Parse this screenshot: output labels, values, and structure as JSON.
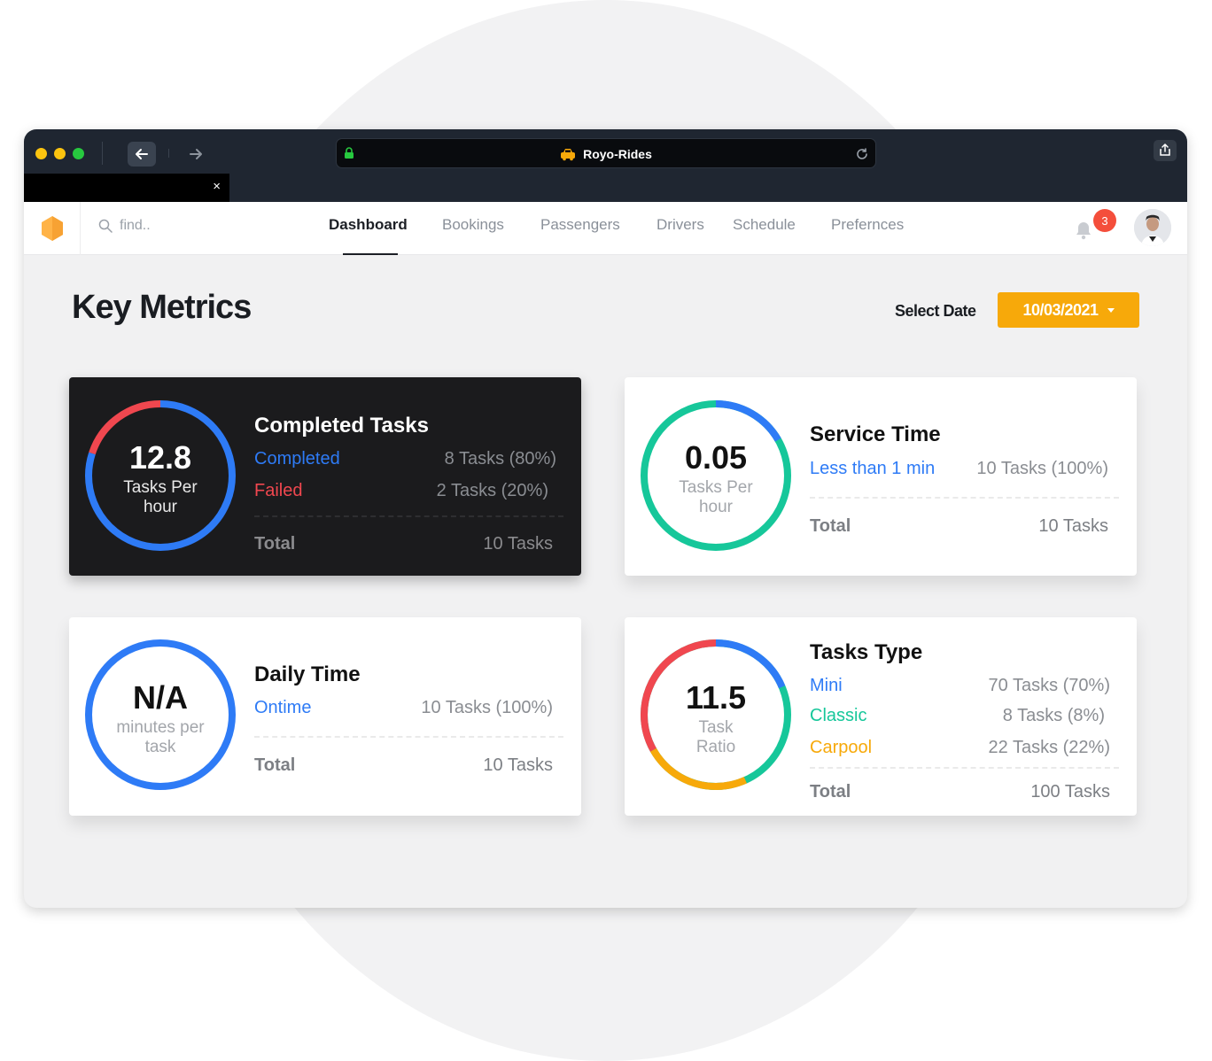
{
  "browser": {
    "tab_title": "Royo-Rides",
    "close_glyph": "×"
  },
  "search": {
    "placeholder": "find.."
  },
  "nav": {
    "items": [
      "Dashboard",
      "Bookings",
      "Passengers",
      "Drivers",
      "Schedule",
      "Prefernces"
    ],
    "active": "Dashboard"
  },
  "notifications": {
    "count": "3"
  },
  "page": {
    "title": "Key Metrics",
    "select_date_label": "Select Date",
    "date_value": "10/03/2021"
  },
  "colors": {
    "accent": "#f7a90a",
    "blue": "#2e7bf6",
    "red": "#f0474f",
    "green": "#16c79a",
    "orange": "#f7a90a",
    "badge": "#f44e3b"
  },
  "cards": {
    "completed": {
      "title": "Completed Tasks",
      "ring_value": "12.8",
      "ring_line1": "Tasks Per",
      "ring_line2": "hour",
      "rows": [
        {
          "label": "Completed",
          "value": "8 Tasks (80%)",
          "color": "#2e7bf6"
        },
        {
          "label": "Failed",
          "value": "2 Tasks (20%)",
          "color": "#f0474f"
        }
      ],
      "total_label": "Total",
      "total_value": "10 Tasks",
      "segments": [
        0.8,
        0.2
      ]
    },
    "service": {
      "title": "Service Time",
      "ring_value": "0.05",
      "ring_line1": "Tasks Per",
      "ring_line2": "hour",
      "rows": [
        {
          "label": "Less than 1 min",
          "value": "10 Tasks (100%)",
          "color": "#2e7bf6"
        }
      ],
      "total_label": "Total",
      "total_value": "10 Tasks"
    },
    "daily": {
      "title": "Daily Time",
      "ring_value": "N/A",
      "ring_line1": "minutes per",
      "ring_line2": "task",
      "rows": [
        {
          "label": "Ontime",
          "value": "10 Tasks (100%)",
          "color": "#2e7bf6"
        }
      ],
      "total_label": "Total",
      "total_value": "10 Tasks"
    },
    "types": {
      "title": "Tasks Type",
      "ring_value": "11.5",
      "ring_line1": "Task",
      "ring_line2": "Ratio",
      "rows": [
        {
          "label": "Mini",
          "value": "70 Tasks (70%)",
          "color": "#2e7bf6"
        },
        {
          "label": "Classic",
          "value": "8 Tasks (8%)",
          "color": "#16c79a"
        },
        {
          "label": "Carpool",
          "value": "22 Tasks (22%)",
          "color": "#f7a90a"
        }
      ],
      "total_label": "Total",
      "total_value": "100 Tasks"
    }
  }
}
